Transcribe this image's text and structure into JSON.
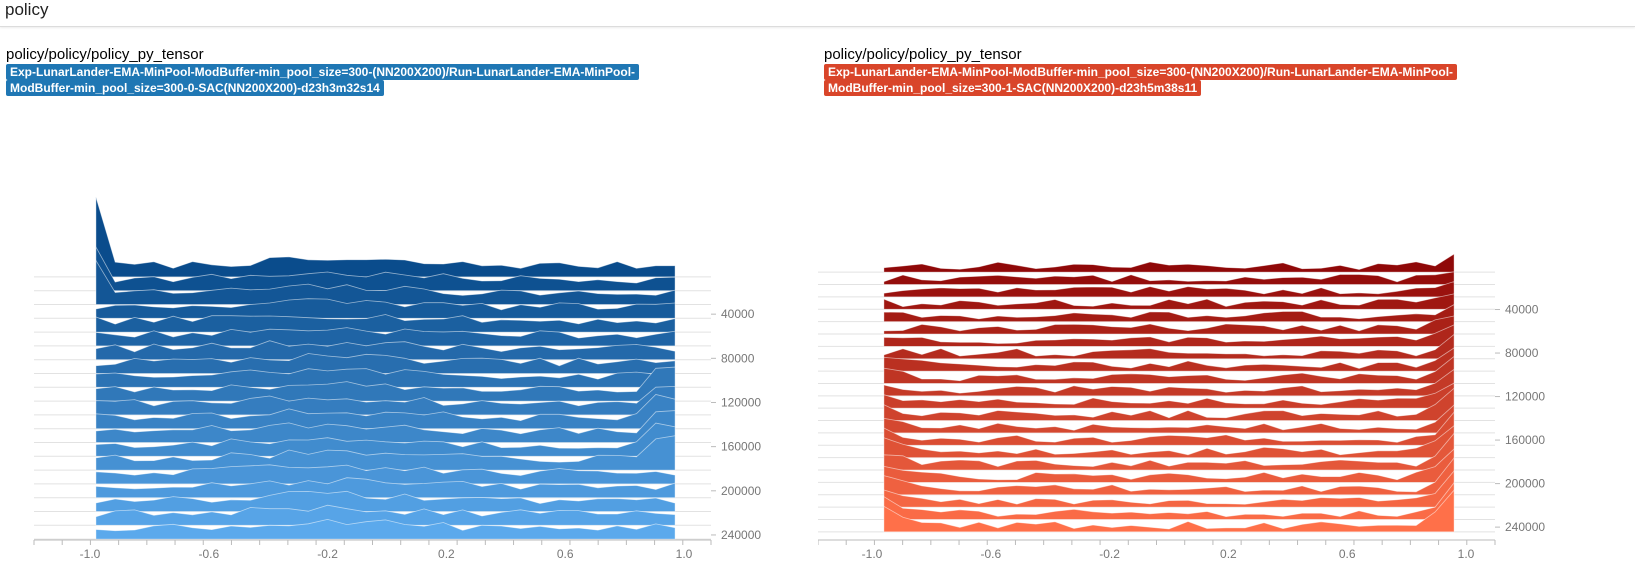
{
  "header": {
    "title": "policy"
  },
  "colors": {
    "blue_old": "#0a4c8c",
    "blue_new": "#5ba9ec",
    "red_old": "#8f0808",
    "red_new": "#ff7049",
    "axis": "#bbbbbb",
    "tick_text": "#777777"
  },
  "chart_data": [
    {
      "type": "area",
      "subtype": "histogram-ridgeline",
      "title": "policy/policy/policy_py_tensor",
      "run": "Exp-LunarLander-EMA-MinPool-ModBuffer-min_pool_size=300-(NN200X200)/Run-LunarLander-EMA-MinPool-ModBuffer-min_pool_size=300-0-SAC(NN200X200)-d23h3m32s14",
      "x_ticks": [
        "-1.0",
        "-0.6",
        "-0.2",
        "0.2",
        "0.6",
        "1.0"
      ],
      "xlim": [
        -1.0,
        1.0
      ],
      "step_ticks": [
        "40000",
        "80000",
        "120000",
        "160000",
        "200000",
        "240000"
      ],
      "step_range": [
        0,
        250000
      ],
      "pattern": "mostly uniform spread over [-1, 1] with a spike near -1.0 at early steps and a bump near 1.0 at middle steps",
      "color_old": "#0a4c8c",
      "color_new": "#5ba9ec"
    },
    {
      "type": "area",
      "subtype": "histogram-ridgeline",
      "title": "policy/policy/policy_py_tensor",
      "run": "Exp-LunarLander-EMA-MinPool-ModBuffer-min_pool_size=300-(NN200X200)/Run-LunarLander-EMA-MinPool-ModBuffer-min_pool_size=300-1-SAC(NN200X200)-d23h5m38s11",
      "x_ticks": [
        "-1.0",
        "-0.6",
        "-0.2",
        "0.2",
        "0.6",
        "1.0"
      ],
      "xlim": [
        -1.0,
        1.0
      ],
      "step_ticks": [
        "40000",
        "80000",
        "120000",
        "160000",
        "200000",
        "240000"
      ],
      "step_range": [
        0,
        250000
      ],
      "pattern": "flat between -0.95 and 0.85 with a strong spike near 1.0 that grows over training and a rising edge near -1.0 at late steps",
      "color_old": "#8f0808",
      "color_new": "#ff7049"
    }
  ]
}
